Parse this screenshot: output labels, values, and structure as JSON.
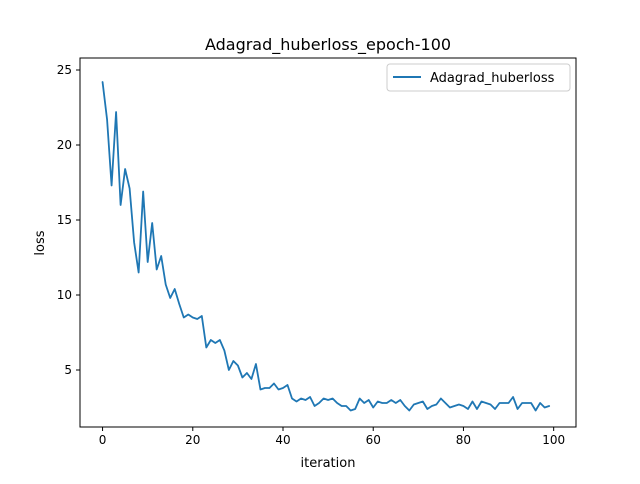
{
  "chart_data": {
    "type": "line",
    "title": "Adagrad_huberloss_epoch-100",
    "xlabel": "iteration",
    "ylabel": "loss",
    "xlim": [
      -5,
      104.95
    ],
    "ylim": [
      1.2,
      25.8
    ],
    "xticks": [
      0,
      20,
      40,
      60,
      80,
      100
    ],
    "yticks": [
      5,
      10,
      15,
      20,
      25
    ],
    "legend_position": "top-right",
    "grid": false,
    "series": [
      {
        "name": "Adagrad_huberloss",
        "color": "#1f77b4",
        "x": [
          0,
          1,
          2,
          3,
          4,
          5,
          6,
          7,
          8,
          9,
          10,
          11,
          12,
          13,
          14,
          15,
          16,
          17,
          18,
          19,
          20,
          21,
          22,
          23,
          24,
          25,
          26,
          27,
          28,
          29,
          30,
          31,
          32,
          33,
          34,
          35,
          36,
          37,
          38,
          39,
          40,
          41,
          42,
          43,
          44,
          45,
          46,
          47,
          48,
          49,
          50,
          51,
          52,
          53,
          54,
          55,
          56,
          57,
          58,
          59,
          60,
          61,
          62,
          63,
          64,
          65,
          66,
          67,
          68,
          69,
          70,
          71,
          72,
          73,
          74,
          75,
          76,
          77,
          78,
          79,
          80,
          81,
          82,
          83,
          84,
          85,
          86,
          87,
          88,
          89,
          90,
          91,
          92,
          93,
          94,
          95,
          96,
          97,
          98,
          99
        ],
        "values": [
          24.2,
          21.7,
          17.3,
          22.2,
          16.0,
          18.4,
          17.1,
          13.5,
          11.5,
          16.9,
          12.2,
          14.8,
          11.7,
          12.6,
          10.7,
          9.8,
          10.4,
          9.4,
          8.5,
          8.7,
          8.5,
          8.4,
          8.6,
          6.5,
          7.0,
          6.8,
          7.0,
          6.3,
          5.0,
          5.6,
          5.3,
          4.5,
          4.8,
          4.4,
          5.4,
          3.7,
          3.8,
          3.8,
          4.1,
          3.7,
          3.8,
          4.0,
          3.1,
          2.9,
          3.1,
          3.0,
          3.2,
          2.6,
          2.8,
          3.1,
          3.0,
          3.1,
          2.8,
          2.6,
          2.6,
          2.3,
          2.4,
          3.1,
          2.8,
          3.0,
          2.5,
          2.9,
          2.8,
          2.8,
          3.0,
          2.8,
          3.0,
          2.6,
          2.3,
          2.7,
          2.8,
          2.9,
          2.4,
          2.6,
          2.7,
          3.1,
          2.8,
          2.5,
          2.6,
          2.7,
          2.6,
          2.4,
          2.9,
          2.4,
          2.9,
          2.8,
          2.7,
          2.4,
          2.8,
          2.8,
          2.8,
          3.2,
          2.4,
          2.8,
          2.8,
          2.8,
          2.3,
          2.8,
          2.5,
          2.6
        ]
      }
    ]
  }
}
